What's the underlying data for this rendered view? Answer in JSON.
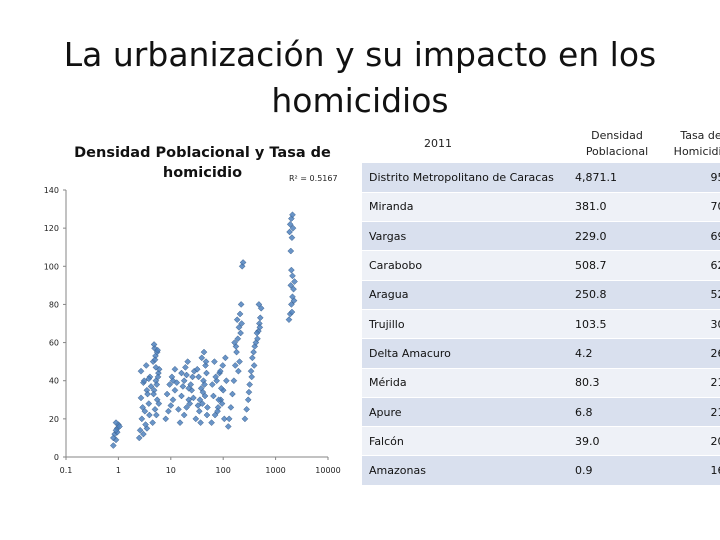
{
  "slide": {
    "title": "La urbanización y su impacto en los homicidios"
  },
  "chart_data": {
    "type": "scatter",
    "title": "Densidad Poblacional y Tasa de homicidio",
    "annotation": "R² = 0.5167",
    "xscale": "log",
    "xlim": [
      0.1,
      10000
    ],
    "ylim": [
      0,
      140
    ],
    "xticks": [
      "0.1",
      "1",
      "10",
      "100",
      "1000",
      "10000"
    ],
    "yticks": [
      "0",
      "20",
      "40",
      "60",
      "80",
      "100",
      "120",
      "140"
    ],
    "grid": false,
    "legend": "none",
    "marker_color": "#4f81bd",
    "series": [
      {
        "points": [
          [
            0.8,
            6
          ],
          [
            0.9,
            9
          ],
          [
            0.85,
            12
          ],
          [
            0.95,
            15
          ],
          [
            1.0,
            17
          ],
          [
            0.9,
            18
          ],
          [
            0.8,
            10
          ],
          [
            0.95,
            13
          ],
          [
            1.05,
            16
          ],
          [
            0.9,
            14
          ],
          [
            2.5,
            10
          ],
          [
            3.0,
            12
          ],
          [
            3.5,
            15
          ],
          [
            2.8,
            20
          ],
          [
            3.2,
            24
          ],
          [
            3.8,
            28
          ],
          [
            2.7,
            31
          ],
          [
            3.5,
            35
          ],
          [
            3.0,
            39
          ],
          [
            4.0,
            42
          ],
          [
            2.6,
            14
          ],
          [
            3.3,
            17
          ],
          [
            3.9,
            22
          ],
          [
            2.9,
            26
          ],
          [
            3.6,
            33
          ],
          [
            4.2,
            37
          ],
          [
            3.1,
            40
          ],
          [
            2.7,
            45
          ],
          [
            3.4,
            48
          ],
          [
            3.8,
            41
          ],
          [
            4.5,
            18
          ],
          [
            5.0,
            25
          ],
          [
            5.5,
            30
          ],
          [
            4.8,
            35
          ],
          [
            5.2,
            40
          ],
          [
            5.8,
            44
          ],
          [
            4.6,
            50
          ],
          [
            5.1,
            53
          ],
          [
            5.5,
            55
          ],
          [
            4.9,
            57
          ],
          [
            5.3,
            22
          ],
          [
            5.9,
            28
          ],
          [
            4.7,
            33
          ],
          [
            5.4,
            38
          ],
          [
            6.0,
            46
          ],
          [
            5.0,
            51
          ],
          [
            5.6,
            56
          ],
          [
            4.8,
            59
          ],
          [
            5.2,
            47
          ],
          [
            5.7,
            42
          ],
          [
            8,
            20
          ],
          [
            9,
            24
          ],
          [
            10,
            27
          ],
          [
            11,
            30
          ],
          [
            12,
            35
          ],
          [
            9.5,
            38
          ],
          [
            10.5,
            42
          ],
          [
            12,
            46
          ],
          [
            8.5,
            33
          ],
          [
            11,
            40
          ],
          [
            15,
            18
          ],
          [
            18,
            22
          ],
          [
            20,
            26
          ],
          [
            22,
            30
          ],
          [
            25,
            35
          ],
          [
            18,
            40
          ],
          [
            20,
            43
          ],
          [
            24,
            38
          ],
          [
            19,
            47
          ],
          [
            21,
            50
          ],
          [
            14,
            25
          ],
          [
            16,
            32
          ],
          [
            23,
            28
          ],
          [
            26,
            42
          ],
          [
            17,
            37
          ],
          [
            28,
            45
          ],
          [
            13,
            39
          ],
          [
            27,
            31
          ],
          [
            16,
            44
          ],
          [
            22,
            36
          ],
          [
            30,
            20
          ],
          [
            35,
            24
          ],
          [
            40,
            28
          ],
          [
            45,
            32
          ],
          [
            50,
            26
          ],
          [
            38,
            36
          ],
          [
            42,
            40
          ],
          [
            48,
            44
          ],
          [
            36,
            30
          ],
          [
            44,
            38
          ],
          [
            32,
            46
          ],
          [
            46,
            48
          ],
          [
            39,
            52
          ],
          [
            34,
            42
          ],
          [
            41,
            34
          ],
          [
            49,
            22
          ],
          [
            37,
            18
          ],
          [
            43,
            55
          ],
          [
            47,
            50
          ],
          [
            33,
            27
          ],
          [
            60,
            18
          ],
          [
            70,
            22
          ],
          [
            80,
            26
          ],
          [
            90,
            30
          ],
          [
            100,
            35
          ],
          [
            75,
            40
          ],
          [
            85,
            44
          ],
          [
            95,
            28
          ],
          [
            65,
            32
          ],
          [
            105,
            20
          ],
          [
            62,
            38
          ],
          [
            72,
            42
          ],
          [
            88,
            45
          ],
          [
            98,
            48
          ],
          [
            110,
            52
          ],
          [
            68,
            50
          ],
          [
            78,
            24
          ],
          [
            92,
            36
          ],
          [
            115,
            40
          ],
          [
            82,
            30
          ],
          [
            125,
            16
          ],
          [
            130,
            20
          ],
          [
            140,
            26
          ],
          [
            150,
            33
          ],
          [
            160,
            40
          ],
          [
            170,
            48
          ],
          [
            180,
            55
          ],
          [
            190,
            62
          ],
          [
            200,
            68
          ],
          [
            185,
            72
          ],
          [
            210,
            75
          ],
          [
            220,
            80
          ],
          [
            230,
            100
          ],
          [
            240,
            102
          ],
          [
            175,
            58
          ],
          [
            195,
            45
          ],
          [
            165,
            60
          ],
          [
            215,
            65
          ],
          [
            205,
            50
          ],
          [
            225,
            70
          ],
          [
            260,
            20
          ],
          [
            280,
            25
          ],
          [
            300,
            30
          ],
          [
            320,
            38
          ],
          [
            340,
            45
          ],
          [
            360,
            52
          ],
          [
            380,
            55
          ],
          [
            400,
            58
          ],
          [
            420,
            60
          ],
          [
            450,
            62
          ],
          [
            470,
            66
          ],
          [
            490,
            70
          ],
          [
            510,
            73
          ],
          [
            530,
            78
          ],
          [
            480,
            80
          ],
          [
            350,
            42
          ],
          [
            310,
            34
          ],
          [
            390,
            48
          ],
          [
            440,
            65
          ],
          [
            500,
            68
          ],
          [
            1800,
            72
          ],
          [
            1900,
            75
          ],
          [
            2000,
            80
          ],
          [
            2100,
            84
          ],
          [
            2200,
            88
          ],
          [
            2300,
            92
          ],
          [
            2100,
            95
          ],
          [
            2000,
            98
          ],
          [
            1950,
            108
          ],
          [
            2050,
            115
          ],
          [
            1850,
            118
          ],
          [
            2150,
            120
          ],
          [
            1900,
            122
          ],
          [
            2000,
            125
          ],
          [
            2100,
            127
          ],
          [
            1950,
            90
          ],
          [
            2250,
            82
          ],
          [
            2050,
            76
          ]
        ]
      }
    ]
  },
  "table": {
    "headers": [
      "2011",
      "Densidad Poblacional",
      "Tasa de Homicidio"
    ],
    "rows": [
      {
        "name": "Distrito Metropolitano de Caracas",
        "density": "4,871.1",
        "rate": "95.0"
      },
      {
        "name": "Miranda",
        "density": "381.0",
        "rate": "70.0"
      },
      {
        "name": "Vargas",
        "density": "229.0",
        "rate": "69.0"
      },
      {
        "name": "Carabobo",
        "density": "508.7",
        "rate": "62.0"
      },
      {
        "name": "Aragua",
        "density": "250.8",
        "rate": "52.0"
      },
      {
        "name": "Trujillo",
        "density": "103.5",
        "rate": "30.0"
      },
      {
        "name": "Delta Amacuro",
        "density": "4.2",
        "rate": "26.0"
      },
      {
        "name": "Mérida",
        "density": "80.3",
        "rate": "21.0"
      },
      {
        "name": "Apure",
        "density": "6.8",
        "rate": "21.0"
      },
      {
        "name": "Falcón",
        "density": "39.0",
        "rate": "20.0"
      },
      {
        "name": "Amazonas",
        "density": "0.9",
        "rate": "16.0"
      }
    ]
  }
}
